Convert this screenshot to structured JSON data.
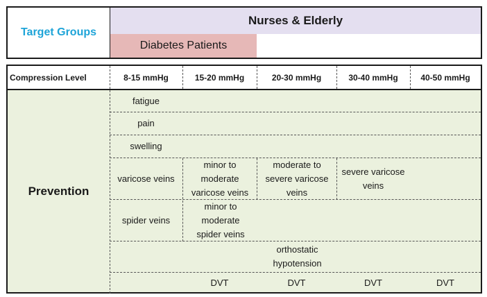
{
  "header": {
    "target_groups_label": "Target Groups",
    "nurses_elderly": "Nurses & Elderly",
    "diabetes_patients": "Diabetes Patients"
  },
  "table": {
    "columns": [
      "Compression Level",
      "8-15 mmHg",
      "15-20 mmHg",
      "20-30 mmHg",
      "30-40 mmHg",
      "40-50 mmHg"
    ],
    "category": "Prevention",
    "rows": {
      "fatigue": "fatigue",
      "pain": "pain",
      "swelling": "swelling",
      "varicose": [
        "varicose veins",
        "minor to moderate varicose veins",
        "moderate to severe varicose veins",
        "severe varicose veins"
      ],
      "spider": [
        "spider veins",
        "minor to moderate spider veins"
      ],
      "orthostatic": "orthostatic hypotension",
      "dvt": [
        "DVT",
        "DVT",
        "DVT",
        "DVT"
      ]
    }
  },
  "colors": {
    "target_groups": "#1ea4d8",
    "nurses_bg": "#e4dff0",
    "diabetes_bg": "#e6b8b7",
    "prevention_bg": "#ebf1de",
    "border": "#1a1a1a"
  }
}
